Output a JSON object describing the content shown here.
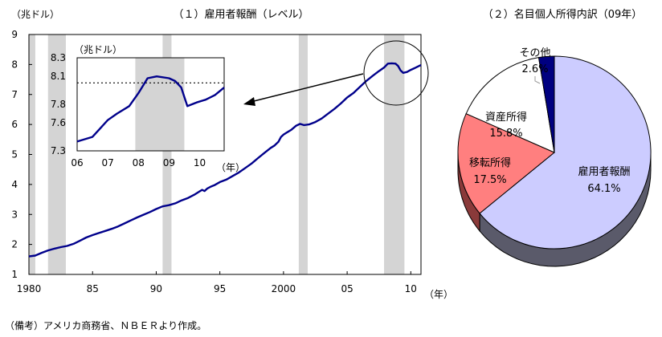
{
  "chart_data": [
    {
      "type": "line",
      "title": "（１）雇用者報酬（レベル）",
      "ylabel": "（兆ドル）",
      "xlabel": "（年）",
      "xlim": [
        1980,
        2010.8
      ],
      "ylim": [
        1,
        9
      ],
      "y_ticks": [
        "1",
        "2",
        "3",
        "4",
        "5",
        "6",
        "7",
        "8",
        "9"
      ],
      "x_ticks": [
        {
          "label": "1980",
          "x": 1980
        },
        {
          "label": "85",
          "x": 1985
        },
        {
          "label": "90",
          "x": 1990
        },
        {
          "label": "95",
          "x": 1995
        },
        {
          "label": "2000",
          "x": 2000
        },
        {
          "label": "05",
          "x": 2005
        },
        {
          "label": "10",
          "x": 2010
        }
      ],
      "recessions": [
        [
          1980.0,
          1980.5
        ],
        [
          1981.5,
          1982.9
        ],
        [
          1990.5,
          1991.2
        ],
        [
          2001.2,
          2001.9
        ],
        [
          2007.9,
          2009.5
        ]
      ],
      "series": [
        {
          "color": "#00008b",
          "points": [
            [
              1980.0,
              1.6
            ],
            [
              1980.5,
              1.63
            ],
            [
              1981.0,
              1.72
            ],
            [
              1981.5,
              1.8
            ],
            [
              1982.0,
              1.86
            ],
            [
              1982.5,
              1.91
            ],
            [
              1983.0,
              1.95
            ],
            [
              1983.5,
              2.02
            ],
            [
              1984.0,
              2.12
            ],
            [
              1984.5,
              2.23
            ],
            [
              1985.0,
              2.31
            ],
            [
              1985.5,
              2.38
            ],
            [
              1986.0,
              2.45
            ],
            [
              1986.5,
              2.52
            ],
            [
              1987.0,
              2.6
            ],
            [
              1987.5,
              2.7
            ],
            [
              1988.0,
              2.8
            ],
            [
              1988.5,
              2.9
            ],
            [
              1989.0,
              2.99
            ],
            [
              1989.5,
              3.08
            ],
            [
              1990.0,
              3.18
            ],
            [
              1990.5,
              3.27
            ],
            [
              1991.0,
              3.31
            ],
            [
              1991.5,
              3.37
            ],
            [
              1992.0,
              3.47
            ],
            [
              1992.5,
              3.55
            ],
            [
              1993.0,
              3.66
            ],
            [
              1993.3,
              3.74
            ],
            [
              1993.6,
              3.82
            ],
            [
              1993.8,
              3.78
            ],
            [
              1994.0,
              3.86
            ],
            [
              1994.3,
              3.93
            ],
            [
              1994.6,
              3.98
            ],
            [
              1995.0,
              4.08
            ],
            [
              1995.5,
              4.16
            ],
            [
              1996.0,
              4.28
            ],
            [
              1996.5,
              4.4
            ],
            [
              1997.0,
              4.55
            ],
            [
              1997.5,
              4.7
            ],
            [
              1998.0,
              4.88
            ],
            [
              1998.5,
              5.05
            ],
            [
              1999.0,
              5.22
            ],
            [
              1999.3,
              5.3
            ],
            [
              1999.6,
              5.42
            ],
            [
              1999.8,
              5.58
            ],
            [
              2000.0,
              5.66
            ],
            [
              2000.3,
              5.74
            ],
            [
              2000.6,
              5.82
            ],
            [
              2001.0,
              5.96
            ],
            [
              2001.3,
              6.02
            ],
            [
              2001.6,
              5.98
            ],
            [
              2002.0,
              6.0
            ],
            [
              2002.5,
              6.08
            ],
            [
              2003.0,
              6.2
            ],
            [
              2003.5,
              6.36
            ],
            [
              2004.0,
              6.52
            ],
            [
              2004.5,
              6.7
            ],
            [
              2005.0,
              6.9
            ],
            [
              2005.5,
              7.05
            ],
            [
              2006.0,
              7.25
            ],
            [
              2006.5,
              7.45
            ],
            [
              2007.0,
              7.62
            ],
            [
              2007.5,
              7.78
            ],
            [
              2007.9,
              7.9
            ],
            [
              2008.2,
              8.03
            ],
            [
              2008.5,
              8.04
            ],
            [
              2008.8,
              8.03
            ],
            [
              2009.0,
              7.95
            ],
            [
              2009.2,
              7.8
            ],
            [
              2009.4,
              7.72
            ],
            [
              2009.7,
              7.75
            ],
            [
              2010.0,
              7.82
            ],
            [
              2010.3,
              7.88
            ],
            [
              2010.6,
              7.94
            ],
            [
              2010.8,
              7.98
            ]
          ]
        }
      ]
    },
    {
      "type": "line",
      "title": "（兆ドル）",
      "xlabel": "（年）",
      "xlim": [
        2006,
        2010.8
      ],
      "ylim": [
        7.3,
        8.3
      ],
      "y_ticks": [
        "8.3",
        "8.1",
        "7.8",
        "7.6",
        "7.3"
      ],
      "x_ticks": [
        {
          "label": "06",
          "x": 2006
        },
        {
          "label": "07",
          "x": 2007
        },
        {
          "label": "08",
          "x": 2008
        },
        {
          "label": "09",
          "x": 2009
        },
        {
          "label": "10",
          "x": 2010
        }
      ],
      "reference_line": 8.03,
      "recessions": [
        [
          2007.9,
          2009.5
        ]
      ],
      "series": [
        {
          "color": "#00008b",
          "points": [
            [
              2006.0,
              7.4
            ],
            [
              2006.5,
              7.45
            ],
            [
              2007.0,
              7.63
            ],
            [
              2007.3,
              7.7
            ],
            [
              2007.7,
              7.78
            ],
            [
              2008.0,
              7.92
            ],
            [
              2008.3,
              8.08
            ],
            [
              2008.6,
              8.1
            ],
            [
              2009.0,
              8.08
            ],
            [
              2009.2,
              8.05
            ],
            [
              2009.4,
              7.98
            ],
            [
              2009.6,
              7.78
            ],
            [
              2009.9,
              7.82
            ],
            [
              2010.2,
              7.85
            ],
            [
              2010.5,
              7.9
            ],
            [
              2010.8,
              7.98
            ]
          ]
        }
      ]
    },
    {
      "type": "pie",
      "title": "（２）名目個人所得内訳（09年）",
      "slices": [
        {
          "label": "雇用者報酬",
          "value": 64.1,
          "value_label": "64.1%",
          "color": "#ccccff"
        },
        {
          "label": "移転所得",
          "value": 17.5,
          "value_label": "17.5%",
          "color": "#ff7f7f"
        },
        {
          "label": "資産所得",
          "value": 15.8,
          "value_label": "15.8%",
          "color": "#ffffff"
        },
        {
          "label": "その他",
          "value": 2.6,
          "value_label": "2.6%",
          "color": "#000080"
        }
      ]
    }
  ],
  "footnote": "（備考）アメリカ商務省、ＮＢＥＲより作成。"
}
